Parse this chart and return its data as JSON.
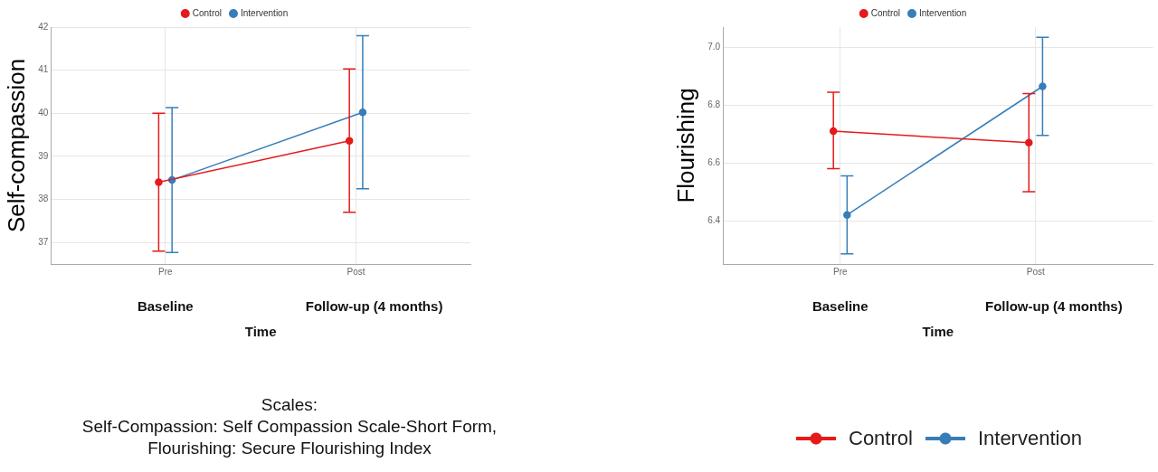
{
  "chart_data": [
    {
      "type": "line",
      "ylabel": "Self-compassion",
      "xlabel": "Time",
      "categories": [
        "Pre",
        "Post"
      ],
      "ylim": [
        36.5,
        42
      ],
      "yticks": [
        37,
        38,
        39,
        40,
        41,
        42
      ],
      "grid": true,
      "legend": "top",
      "marker": "circle",
      "line_style": "solid",
      "series": [
        {
          "name": "Control",
          "color": "#e41a1c",
          "values": [
            38.4,
            39.36
          ],
          "errors": [
            [
              36.8,
              40.0
            ],
            [
              37.7,
              41.03
            ]
          ]
        },
        {
          "name": "Intervention",
          "color": "#377eb8",
          "values": [
            38.45,
            40.02
          ],
          "errors": [
            [
              36.77,
              40.13
            ],
            [
              38.25,
              41.8
            ]
          ]
        }
      ],
      "annotations": [
        "Baseline",
        "Follow-up (4 months)",
        "Scales:\nSelf-Compassion: Self Compassion Scale-Short Form,\nFlourishing: Secure Flourishing Index"
      ]
    },
    {
      "type": "line",
      "ylabel": "Flourishing",
      "xlabel": "Time",
      "categories": [
        "Pre",
        "Post"
      ],
      "ylim": [
        6.25,
        7.07
      ],
      "yticks": [
        6.4,
        6.6,
        6.8,
        {
          "value": 7,
          "label": "7.0"
        }
      ],
      "grid": true,
      "legend": "top",
      "marker": "circle",
      "line_style": "solid",
      "series": [
        {
          "name": "Control",
          "color": "#e41a1c",
          "values": [
            6.71,
            6.67
          ],
          "errors": [
            [
              6.58,
              6.845
            ],
            [
              6.5,
              6.84
            ]
          ]
        },
        {
          "name": "Intervention",
          "color": "#377eb8",
          "values": [
            6.42,
            6.865
          ],
          "errors": [
            [
              6.285,
              6.555
            ],
            [
              6.695,
              7.035
            ]
          ]
        }
      ],
      "annotations": [
        "Baseline",
        "Follow-up (4 months)"
      ]
    }
  ]
}
